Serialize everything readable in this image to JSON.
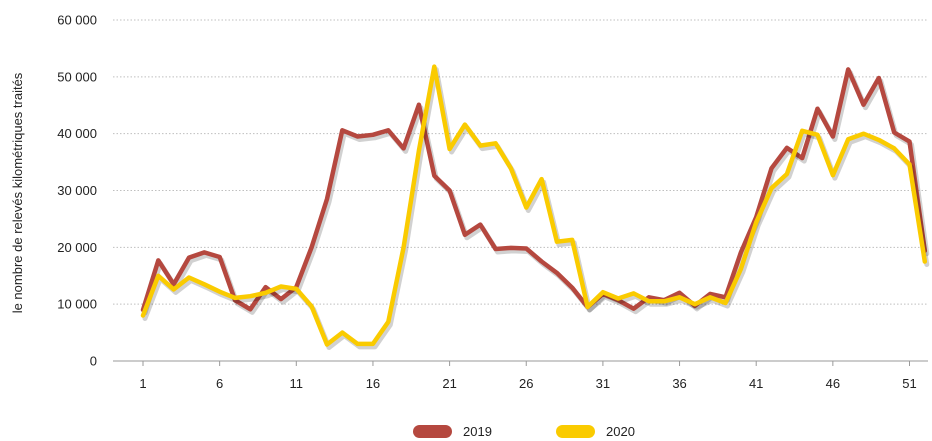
{
  "chart_data": {
    "type": "line",
    "ylabel": "le nombre de relevés kilométriques traités",
    "ylim": [
      0,
      60000
    ],
    "y_ticks": [
      "0",
      "10 000",
      "20 000",
      "30 000",
      "40 000",
      "50 000",
      "60 000"
    ],
    "y_tick_values": [
      0,
      10000,
      20000,
      30000,
      40000,
      50000,
      60000
    ],
    "x_ticks": [
      "1",
      "6",
      "11",
      "16",
      "21",
      "26",
      "31",
      "36",
      "41",
      "46",
      "51"
    ],
    "x_tick_values": [
      1,
      6,
      11,
      16,
      21,
      26,
      31,
      36,
      41,
      46,
      51
    ],
    "xlim": [
      1,
      52
    ],
    "grid": "horizontal dotted",
    "legend_position": "bottom-center",
    "x": [
      1,
      2,
      3,
      4,
      5,
      6,
      7,
      8,
      9,
      10,
      11,
      12,
      13,
      14,
      15,
      16,
      17,
      18,
      19,
      20,
      21,
      22,
      23,
      24,
      25,
      26,
      27,
      28,
      29,
      30,
      31,
      32,
      33,
      34,
      35,
      36,
      37,
      38,
      39,
      40,
      41,
      42,
      43,
      44,
      45,
      46,
      47,
      48,
      49,
      50,
      51,
      52
    ],
    "series": [
      {
        "name": "2019",
        "color": "#B5483F",
        "values": [
          9000,
          17700,
          13500,
          18200,
          19100,
          18300,
          10700,
          9100,
          13000,
          10900,
          13000,
          20000,
          28500,
          40600,
          39500,
          39800,
          40600,
          37400,
          45100,
          32600,
          30000,
          22200,
          24000,
          19700,
          19900,
          19800,
          17500,
          15500,
          12900,
          9500,
          11800,
          10700,
          9200,
          11200,
          10700,
          12000,
          9700,
          11800,
          11200,
          19100,
          25300,
          33900,
          37500,
          35700,
          44400,
          39500,
          51300,
          45100,
          49800,
          40200,
          38600,
          19400
        ]
      },
      {
        "name": "2020",
        "color": "#FACB00",
        "values": [
          8000,
          15000,
          12600,
          14700,
          13500,
          12200,
          11100,
          11400,
          12000,
          13100,
          12700,
          9600,
          2900,
          5000,
          3000,
          3000,
          6900,
          20000,
          37000,
          51800,
          37300,
          41600,
          37900,
          38300,
          33900,
          27000,
          32000,
          21000,
          21300,
          9500,
          12100,
          11000,
          11900,
          10500,
          10500,
          11200,
          10000,
          11200,
          10200,
          16200,
          24400,
          30400,
          32900,
          40500,
          39800,
          32700,
          39000,
          40000,
          38900,
          37400,
          34600,
          17500
        ]
      }
    ]
  }
}
